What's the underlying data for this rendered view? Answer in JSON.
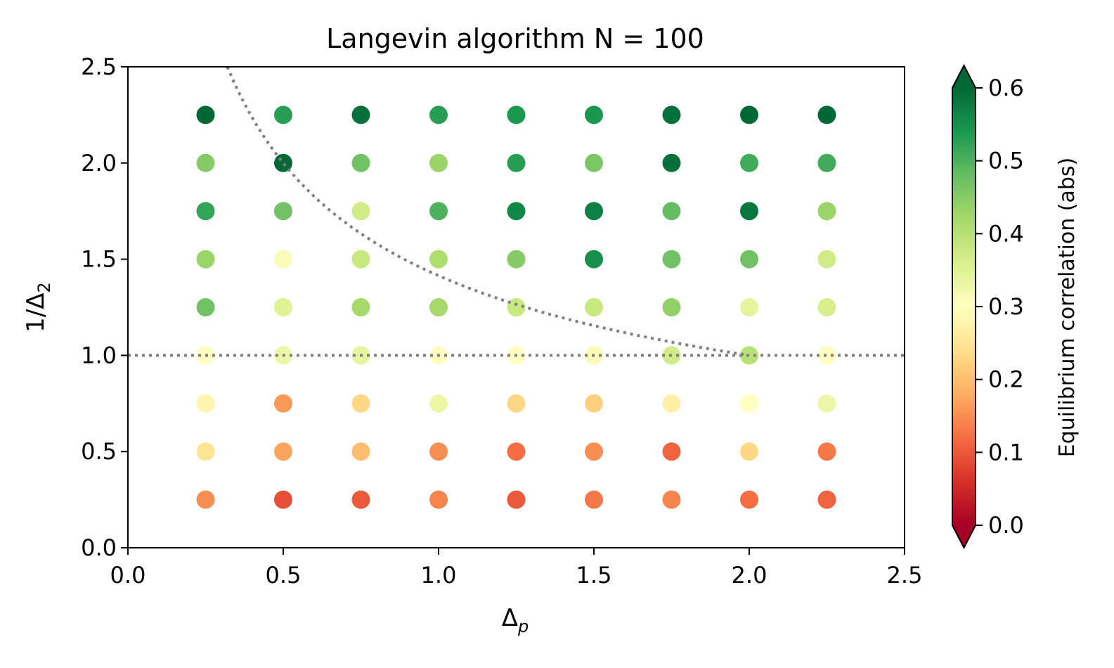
{
  "chart_data": {
    "type": "scatter",
    "title": "Langevin algorithm",
    "title_math": "N = 100",
    "xlabel": "Δ",
    "xlabel_sub": "p",
    "ylabel": "1/Δ",
    "ylabel_sub": "2",
    "xlim": [
      0,
      2.5
    ],
    "ylim": [
      0,
      2.5
    ],
    "xticks": [
      "0.0",
      "0.5",
      "1.0",
      "1.5",
      "2.0",
      "2.5"
    ],
    "yticks": [
      "0.0",
      "0.5",
      "1.0",
      "1.5",
      "2.0",
      "2.5"
    ],
    "x": [
      0.25,
      0.5,
      0.75,
      1.0,
      1.25,
      1.5,
      1.75,
      2.0,
      2.25
    ],
    "y": [
      0.25,
      0.5,
      0.75,
      1.0,
      1.25,
      1.5,
      1.75,
      2.0,
      2.25
    ],
    "z": [
      [
        0.15,
        0.09,
        0.1,
        0.14,
        0.1,
        0.13,
        0.14,
        0.12,
        0.11
      ],
      [
        0.25,
        0.17,
        0.2,
        0.15,
        0.12,
        0.15,
        0.11,
        0.23,
        0.13
      ],
      [
        0.28,
        0.16,
        0.23,
        0.33,
        0.23,
        0.22,
        0.27,
        0.3,
        0.33
      ],
      [
        0.3,
        0.33,
        0.34,
        0.3,
        0.3,
        0.31,
        0.37,
        0.4,
        0.3
      ],
      [
        0.47,
        0.35,
        0.42,
        0.42,
        0.38,
        0.38,
        0.44,
        0.34,
        0.36
      ],
      [
        0.43,
        0.31,
        0.38,
        0.41,
        0.45,
        0.55,
        0.47,
        0.47,
        0.37
      ],
      [
        0.52,
        0.47,
        0.37,
        0.5,
        0.56,
        0.57,
        0.48,
        0.58,
        0.43
      ],
      [
        0.45,
        0.6,
        0.47,
        0.43,
        0.53,
        0.46,
        0.59,
        0.51,
        0.51
      ],
      [
        0.6,
        0.53,
        0.59,
        0.53,
        0.54,
        0.54,
        0.59,
        0.61,
        0.6
      ]
    ],
    "reference_lines": [
      {
        "kind": "horizontal",
        "y": 1.0,
        "style": "dotted",
        "color": "#808080"
      },
      {
        "kind": "curve",
        "equation": "y = 1/sqrt(x/2)",
        "style": "dotted",
        "color": "#808080"
      }
    ],
    "colorbar": {
      "label": "Equilibrium correlation (abs)",
      "colormap": "RdYlGn",
      "range": [
        0.0,
        0.6
      ],
      "ticks": [
        "0.0",
        "0.1",
        "0.2",
        "0.3",
        "0.4",
        "0.5",
        "0.6"
      ],
      "extend": "both"
    },
    "grid": false
  }
}
